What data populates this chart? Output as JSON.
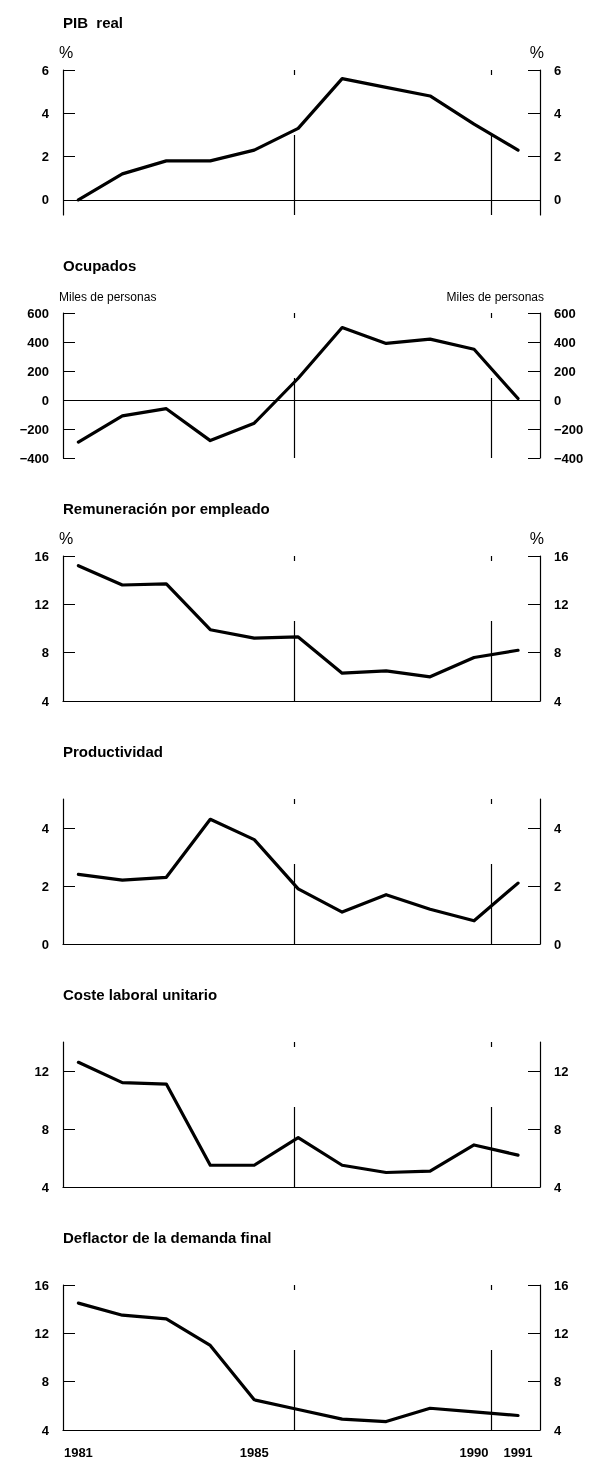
{
  "chart_data": [
    {
      "type": "line",
      "title": "PIB  real",
      "ylabel": "%",
      "y2label": "%",
      "x": [
        1981,
        1982,
        1983,
        1984,
        1985,
        1986,
        1987,
        1988,
        1989,
        1990,
        1991
      ],
      "values": [
        0,
        1.2,
        1.8,
        1.8,
        2.3,
        3.3,
        5.6,
        5.2,
        4.8,
        3.5,
        2.3
      ],
      "color": "#000000",
      "xlim": [
        1980.65,
        1991.5
      ],
      "xticks": [
        1981,
        1985,
        1990,
        1991
      ],
      "ylim": [
        -0.7,
        6
      ],
      "yticks": [
        0,
        2,
        4,
        6
      ],
      "y2lim": [
        -0.7,
        6
      ],
      "y2ticks": [
        0,
        2,
        4,
        6
      ],
      "tick_labels": "y",
      "grid": false,
      "marker": "none",
      "line_style": "solid",
      "ref_lines": [
        {
          "axis": "y",
          "value": 0,
          "line_style": "solid"
        },
        {
          "axis": "x",
          "value": 1985.9,
          "line_style": "dashed"
        },
        {
          "axis": "x",
          "value": 1990.4,
          "line_style": "dashed"
        }
      ]
    },
    {
      "type": "line",
      "title": "Ocupados",
      "ylabel": "Miles de personas",
      "y2label": "Miles de personas",
      "x": [
        1981,
        1982,
        1983,
        1984,
        1985,
        1986,
        1987,
        1988,
        1989,
        1990,
        1991
      ],
      "values": [
        -290,
        -110,
        -60,
        -280,
        -160,
        150,
        500,
        390,
        420,
        350,
        10
      ],
      "color": "#000000",
      "xlim": [
        1980.65,
        1991.5
      ],
      "xticks": [
        1981,
        1985,
        1990,
        1991
      ],
      "ylim": [
        -400,
        600
      ],
      "yticks": [
        -400,
        -200,
        0,
        200,
        400,
        600
      ],
      "y2lim": [
        -400,
        600
      ],
      "y2ticks": [
        -400,
        -200,
        0,
        200,
        400,
        600
      ],
      "tick_labels": "y",
      "grid": false,
      "marker": "none",
      "line_style": "solid",
      "ref_lines": [
        {
          "axis": "y",
          "value": 0,
          "line_style": "solid"
        },
        {
          "axis": "x",
          "value": 1985.9,
          "line_style": "dashed"
        },
        {
          "axis": "x",
          "value": 1990.4,
          "line_style": "dashed"
        }
      ]
    },
    {
      "type": "line",
      "title": "Remuneración por empleado",
      "ylabel": "%",
      "y2label": "%",
      "x": [
        1981,
        1982,
        1983,
        1984,
        1985,
        1986,
        1987,
        1988,
        1989,
        1990,
        1991
      ],
      "values": [
        15.2,
        13.6,
        13.7,
        9.9,
        9.2,
        9.3,
        6.3,
        6.5,
        6.0,
        7.6,
        8.2
      ],
      "color": "#000000",
      "xlim": [
        1980.65,
        1991.5
      ],
      "xticks": [
        1981,
        1985,
        1990,
        1991
      ],
      "ylim": [
        4,
        16
      ],
      "yticks": [
        4,
        8,
        12,
        16
      ],
      "y2lim": [
        4,
        16
      ],
      "y2ticks": [
        4,
        8,
        12,
        16
      ],
      "tick_labels": "y",
      "grid": false,
      "marker": "none",
      "line_style": "solid",
      "ref_lines": [
        {
          "axis": "x",
          "value": 1985.9,
          "line_style": "dashed"
        },
        {
          "axis": "x",
          "value": 1990.4,
          "line_style": "dashed"
        }
      ]
    },
    {
      "type": "line",
      "title": "Productividad",
      "x": [
        1981,
        1982,
        1983,
        1984,
        1985,
        1986,
        1987,
        1988,
        1989,
        1990,
        1991
      ],
      "values": [
        2.4,
        2.2,
        2.3,
        4.3,
        3.6,
        1.9,
        1.1,
        1.7,
        1.2,
        0.8,
        2.1
      ],
      "color": "#000000",
      "xlim": [
        1980.65,
        1991.5
      ],
      "xticks": [
        1981,
        1985,
        1990,
        1991
      ],
      "ylim": [
        0,
        5
      ],
      "yticks": [
        0,
        2,
        4
      ],
      "y2lim": [
        0,
        5
      ],
      "y2ticks": [
        0,
        2,
        4
      ],
      "tick_labels": "y",
      "grid": false,
      "marker": "none",
      "line_style": "solid",
      "ref_lines": [
        {
          "axis": "x",
          "value": 1985.9,
          "line_style": "dashed"
        },
        {
          "axis": "x",
          "value": 1990.4,
          "line_style": "dashed"
        }
      ]
    },
    {
      "type": "line",
      "title": "Coste laboral unitario",
      "x": [
        1981,
        1982,
        1983,
        1984,
        1985,
        1986,
        1987,
        1988,
        1989,
        1990,
        1991
      ],
      "values": [
        12.6,
        11.2,
        11.1,
        5.5,
        5.5,
        7.4,
        5.5,
        5.0,
        5.1,
        6.9,
        6.2
      ],
      "color": "#000000",
      "xlim": [
        1980.65,
        1991.5
      ],
      "xticks": [
        1981,
        1985,
        1990,
        1991
      ],
      "ylim": [
        4,
        14
      ],
      "yticks": [
        4,
        8,
        12
      ],
      "y2lim": [
        4,
        14
      ],
      "y2ticks": [
        4,
        8,
        12
      ],
      "tick_labels": "y",
      "grid": false,
      "marker": "none",
      "line_style": "solid",
      "ref_lines": [
        {
          "axis": "x",
          "value": 1985.9,
          "line_style": "dashed"
        },
        {
          "axis": "x",
          "value": 1990.4,
          "line_style": "dashed"
        }
      ]
    },
    {
      "type": "line",
      "title": "Deflactor de la demanda final",
      "x": [
        1981,
        1982,
        1983,
        1984,
        1985,
        1986,
        1987,
        1988,
        1989,
        1990,
        1991
      ],
      "values": [
        14.5,
        13.5,
        13.2,
        11.0,
        6.5,
        5.7,
        4.9,
        4.7,
        5.8,
        5.5,
        5.2
      ],
      "color": "#000000",
      "xlim": [
        1980.65,
        1991.5
      ],
      "xticks": [
        1981,
        1985,
        1990,
        1991
      ],
      "ylim": [
        4,
        16
      ],
      "yticks": [
        4,
        8,
        12,
        16
      ],
      "y2lim": [
        4,
        16
      ],
      "y2ticks": [
        4,
        8,
        12,
        16
      ],
      "grid": false,
      "marker": "none",
      "line_style": "solid",
      "ref_lines": [
        {
          "axis": "x",
          "value": 1985.9,
          "line_style": "dashed"
        },
        {
          "axis": "x",
          "value": 1990.4,
          "line_style": "dashed"
        }
      ]
    }
  ]
}
